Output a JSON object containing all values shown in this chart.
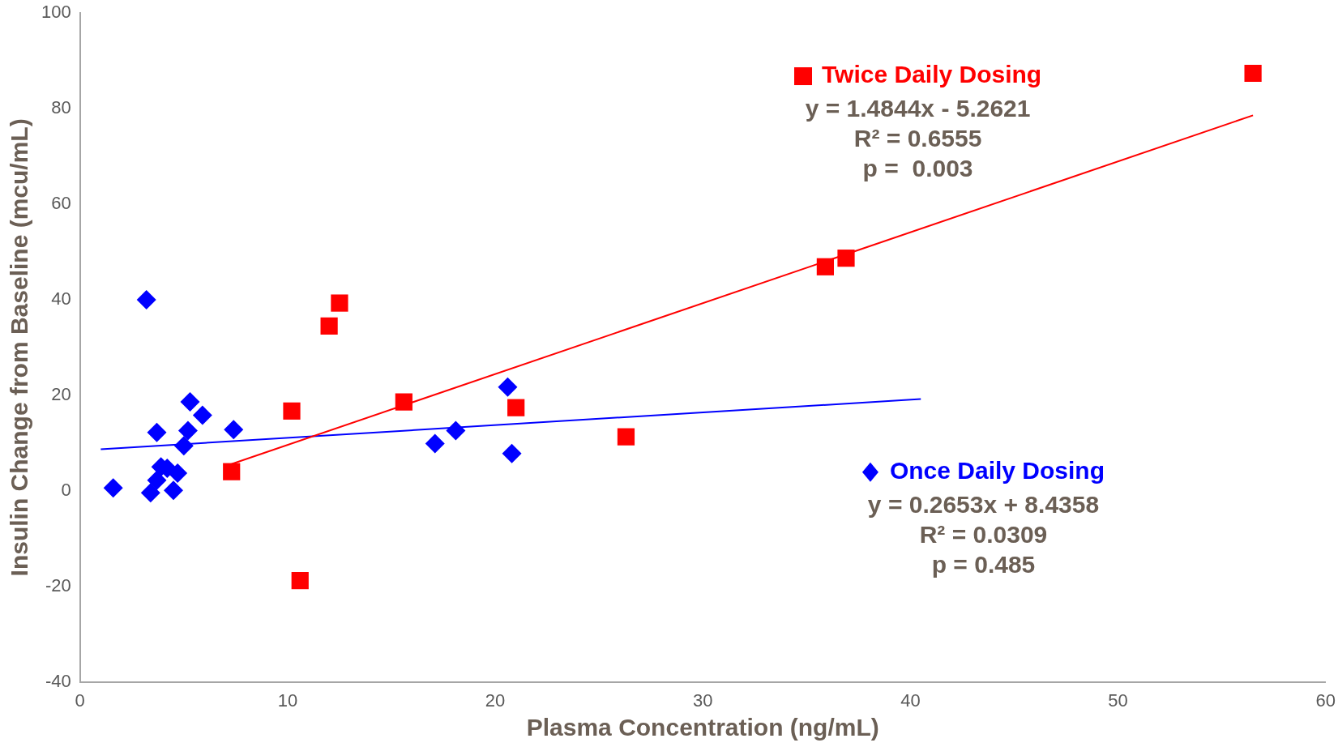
{
  "chart_data": {
    "type": "scatter",
    "xlabel": "Plasma Concentration (ng/mL)",
    "ylabel": "Insulin Change from Baseline (mcu/mL)",
    "xlim": [
      0,
      60
    ],
    "xticks": [
      0,
      10,
      20,
      30,
      40,
      50,
      60
    ],
    "ylim": [
      -40,
      100
    ],
    "yticks": [
      -40,
      -20,
      0,
      20,
      40,
      60,
      80,
      100
    ],
    "grid": false,
    "legend": "top right",
    "series": [
      {
        "name": "Twice Daily Dosing",
        "marker": "square",
        "color": "#ff0000",
        "x": [
          7.3,
          10.2,
          10.6,
          12.0,
          12.5,
          15.6,
          21.0,
          26.3,
          35.9,
          36.9,
          56.5
        ],
        "values": [
          4.0,
          16.7,
          -18.8,
          34.5,
          39.3,
          18.6,
          17.4,
          11.3,
          46.9,
          48.7,
          87.4
        ]
      },
      {
        "name": "Once Daily Dosing",
        "marker": "diamond",
        "color": "#0000ff",
        "x": [
          1.6,
          3.2,
          3.4,
          3.7,
          3.7,
          3.9,
          4.2,
          4.5,
          4.7,
          5.0,
          5.2,
          5.3,
          5.9,
          7.4,
          17.1,
          18.1,
          20.6,
          20.8
        ],
        "values": [
          0.6,
          40,
          -0.4,
          12.2,
          2.2,
          5,
          4.7,
          0.1,
          3.7,
          9.4,
          12.6,
          18.6,
          15.8,
          12.8,
          9.9,
          12.6,
          21.7,
          7.8
        ]
      },
      {
        "type": "line",
        "marker": "none",
        "color": "#ff0000",
        "x": [
          7.3,
          56.5
        ],
        "values": [
          5.6,
          78.6
        ]
      },
      {
        "type": "line",
        "marker": "none",
        "color": "#0000ff",
        "x": [
          1.0,
          40.5
        ],
        "values": [
          8.7,
          19.2
        ]
      }
    ],
    "annotations": [
      "y = 1.4844x - 5.2621",
      "R² = 0.6555",
      "p =  0.003",
      "y = 0.2653x + 8.4358",
      "R² = 0.0309",
      "p = 0.485"
    ]
  }
}
